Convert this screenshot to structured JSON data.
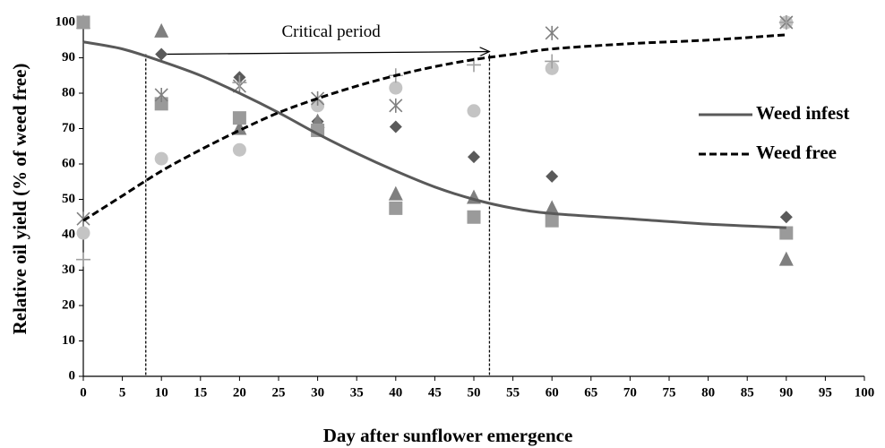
{
  "chart_data": {
    "type": "scatter",
    "xlabel": "Day after sunflower emergence",
    "ylabel": "Relative oil yield (% of weed free)",
    "xlim": [
      0,
      100
    ],
    "xticks": [
      0,
      5,
      10,
      15,
      20,
      25,
      30,
      35,
      40,
      45,
      50,
      55,
      60,
      65,
      70,
      75,
      80,
      85,
      90,
      95,
      100
    ],
    "ylim": [
      0,
      100
    ],
    "yticks": [
      0,
      10,
      20,
      30,
      40,
      50,
      60,
      70,
      80,
      90,
      100
    ],
    "grid": false,
    "legend": "right",
    "x": [
      0,
      5,
      10,
      15,
      20,
      25,
      30,
      35,
      40,
      45,
      50,
      55,
      60,
      70,
      80,
      90
    ],
    "series": [
      {
        "name": "Weed infest",
        "color": "#595959",
        "dash": false,
        "values": [
          94.5,
          92.5,
          89,
          85,
          80,
          74.5,
          68.5,
          63,
          58,
          53.5,
          50,
          47.5,
          46,
          44.5,
          43,
          42
        ]
      },
      {
        "name": "Weed free",
        "color": "#000000",
        "dash": true,
        "values": [
          44,
          51,
          58,
          64,
          69.5,
          74.5,
          78.5,
          82,
          85,
          87.5,
          89.5,
          91,
          92.5,
          94,
          95,
          96.5
        ]
      }
    ],
    "points": [
      {
        "marker": "diamond",
        "color": "#5a5a5a",
        "x": [
          10,
          20,
          30,
          40,
          50,
          60,
          90
        ],
        "values": [
          91,
          84.5,
          72,
          70.5,
          62,
          56.5,
          45
        ]
      },
      {
        "marker": "triangle",
        "color": "#7f7f7f",
        "x": [
          0,
          10,
          20,
          30,
          40,
          50,
          60,
          90
        ],
        "values": [
          100,
          97.5,
          70,
          72,
          51.5,
          50.5,
          47.5,
          33
        ]
      },
      {
        "marker": "square",
        "color": "#9a9a9a",
        "x": [
          0,
          10,
          20,
          30,
          40,
          50,
          60,
          90
        ],
        "values": [
          100,
          77,
          73,
          69.5,
          47.5,
          45,
          44,
          40.5
        ]
      },
      {
        "marker": "circle",
        "color": "#c4c4c4",
        "x": [
          0,
          10,
          20,
          30,
          40,
          50,
          60,
          90
        ],
        "values": [
          40.5,
          61.5,
          64,
          76.5,
          81.5,
          75,
          87,
          100
        ]
      },
      {
        "marker": "asterisk",
        "color": "#808080",
        "x": [
          0,
          10,
          20,
          30,
          40,
          60,
          90
        ],
        "values": [
          44.5,
          79.5,
          82,
          78.5,
          76.5,
          97,
          100
        ]
      },
      {
        "marker": "plus",
        "color": "#a0a0a0",
        "x": [
          0,
          20,
          40,
          50,
          60,
          90
        ],
        "values": [
          33,
          83,
          85,
          88,
          89,
          100
        ]
      }
    ],
    "annotation": {
      "text": "Critical period",
      "start": 8,
      "end": 52,
      "arrow_x": [
        9.5,
        52
      ],
      "arrow_y": 91
    }
  }
}
